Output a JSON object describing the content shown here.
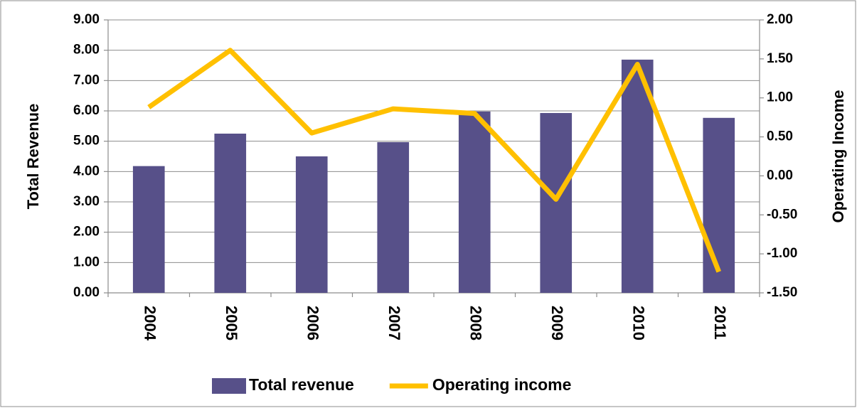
{
  "chart_data": {
    "type": "bar",
    "y_label": "Total Revenue",
    "y2_label": "Operating Income",
    "categories": [
      "2004",
      "2005",
      "2006",
      "2007",
      "2008",
      "2009",
      "2010",
      "2011"
    ],
    "series": [
      {
        "name": "Total revenue",
        "type": "bar",
        "color": "#575089",
        "values": [
          4.18,
          5.25,
          4.5,
          4.97,
          5.98,
          5.93,
          7.69,
          5.77
        ]
      },
      {
        "name": "Operating income",
        "type": "line",
        "axis": "y2",
        "color": "#ffc000",
        "values": [
          0.88,
          1.61,
          0.55,
          0.86,
          0.8,
          -0.3,
          1.43,
          -1.23
        ]
      }
    ],
    "ylim": [
      0,
      9
    ],
    "yticks": [
      {
        "value": 0,
        "label": "0.00"
      },
      {
        "value": 1,
        "label": "1.00"
      },
      {
        "value": 2,
        "label": "2.00"
      },
      {
        "value": 3,
        "label": "3.00"
      },
      {
        "value": 4,
        "label": "4.00"
      },
      {
        "value": 5,
        "label": "5.00"
      },
      {
        "value": 6,
        "label": "6.00"
      },
      {
        "value": 7,
        "label": "7.00"
      },
      {
        "value": 8,
        "label": "8.00"
      },
      {
        "value": 9,
        "label": "9.00"
      }
    ],
    "y2lim": [
      -1.5,
      2
    ],
    "y2ticks": [
      {
        "value": -1.5,
        "label": "-1.50"
      },
      {
        "value": -1,
        "label": "-1.00"
      },
      {
        "value": -0.5,
        "label": "-0.50"
      },
      {
        "value": 0,
        "label": "0.00"
      },
      {
        "value": 0.5,
        "label": "0.50"
      },
      {
        "value": 1,
        "label": "1.00"
      },
      {
        "value": 1.5,
        "label": "1.50"
      },
      {
        "value": 2,
        "label": "2.00"
      }
    ],
    "grid": true,
    "legend": "bottom"
  }
}
